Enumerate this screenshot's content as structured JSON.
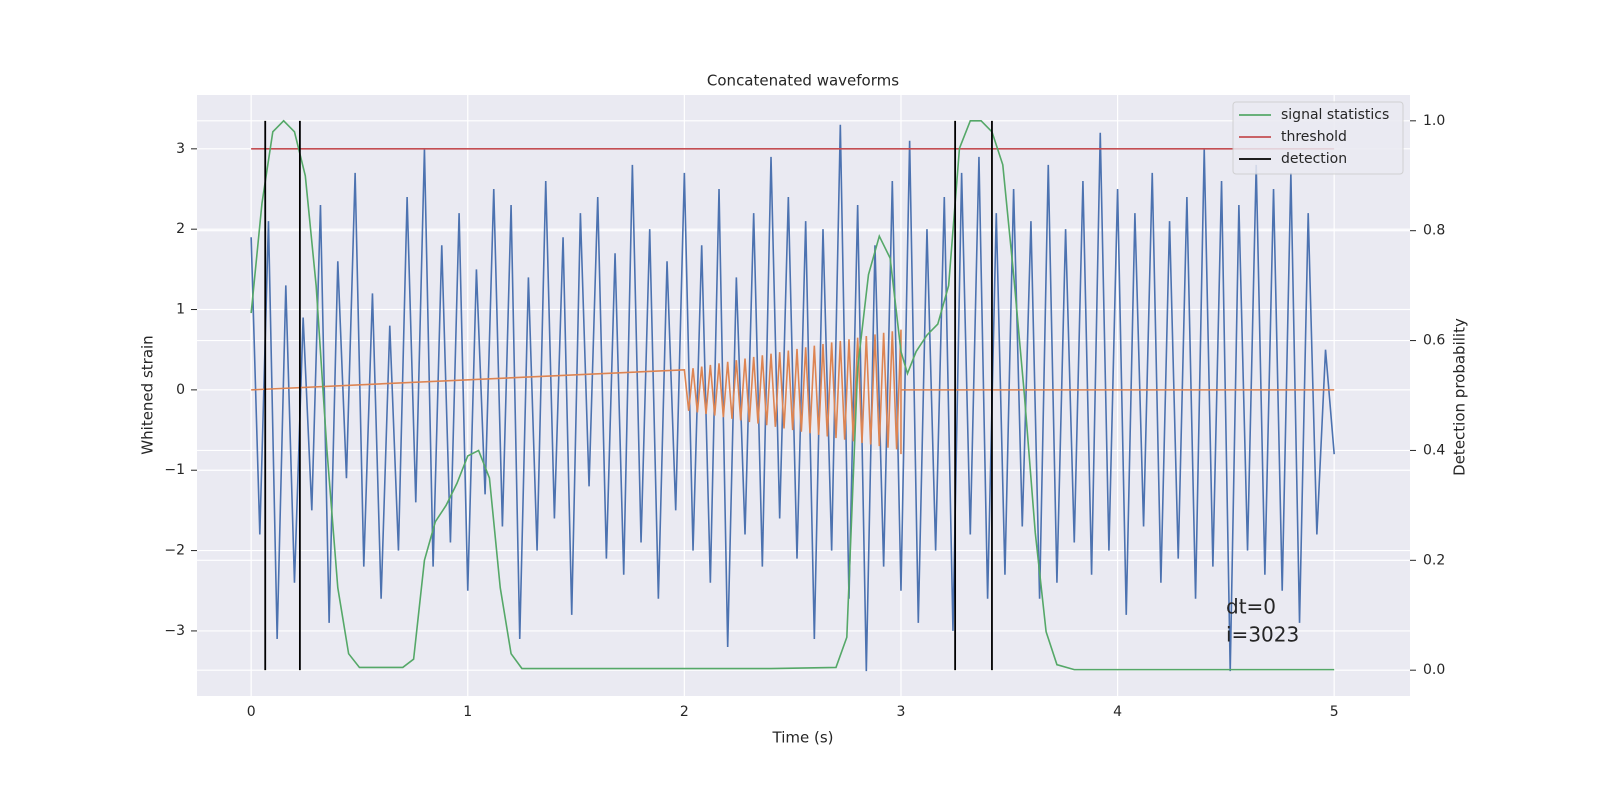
{
  "chart_data": {
    "type": "line",
    "title": "Concatenated waveforms",
    "x_label": "Time (s)",
    "y_label": "Whitened strain",
    "y2_label": "Detection probability",
    "xlim": [
      -0.25,
      5.35
    ],
    "ylim": [
      -3.81,
      3.67
    ],
    "y2lim": [
      -0.047,
      1.047
    ],
    "xticks": [
      0,
      1,
      2,
      3,
      4,
      5
    ],
    "yticks": [
      {
        "value": -3,
        "label": "−3"
      },
      {
        "value": -2,
        "label": "−2"
      },
      {
        "value": -1,
        "label": "−1"
      },
      0,
      1,
      2,
      3
    ],
    "y2ticks": [
      {
        "value": 0,
        "label": "0.0"
      },
      0.2,
      0.4,
      0.6,
      0.8,
      {
        "value": 1,
        "label": "1.0"
      }
    ],
    "grid": true,
    "legend": "upper right",
    "annotations": [
      "dt=0",
      "i=3023"
    ],
    "series": [
      {
        "type": "line",
        "color": "#4c72b0",
        "axis": "y",
        "x": [
          0,
          0.04,
          0.08,
          0.12,
          0.16,
          0.2,
          0.24,
          0.28,
          0.32,
          0.36,
          0.4,
          0.44,
          0.48,
          0.52,
          0.56,
          0.6,
          0.64,
          0.68,
          0.72,
          0.76,
          0.8,
          0.84,
          0.88,
          0.92,
          0.96,
          1.0,
          1.04,
          1.08,
          1.12,
          1.16,
          1.2,
          1.24,
          1.28,
          1.32,
          1.36,
          1.4,
          1.44,
          1.48,
          1.52,
          1.56,
          1.6,
          1.64,
          1.68,
          1.72,
          1.76,
          1.8,
          1.84,
          1.88,
          1.92,
          1.96,
          2.0,
          2.04,
          2.08,
          2.12,
          2.16,
          2.2,
          2.24,
          2.28,
          2.32,
          2.36,
          2.4,
          2.44,
          2.48,
          2.52,
          2.56,
          2.6,
          2.64,
          2.68,
          2.72,
          2.76,
          2.8,
          2.84,
          2.88,
          2.92,
          2.96,
          3.0,
          3.04,
          3.08,
          3.12,
          3.16,
          3.2,
          3.24,
          3.28,
          3.32,
          3.36,
          3.4,
          3.44,
          3.48,
          3.52,
          3.56,
          3.6,
          3.64,
          3.68,
          3.72,
          3.76,
          3.8,
          3.84,
          3.88,
          3.92,
          3.96,
          4.0,
          4.04,
          4.08,
          4.12,
          4.16,
          4.2,
          4.24,
          4.28,
          4.32,
          4.36,
          4.4,
          4.44,
          4.48,
          4.52,
          4.56,
          4.6,
          4.64,
          4.68,
          4.72,
          4.76,
          4.8,
          4.84,
          4.88,
          4.92,
          4.96,
          5.0
        ],
        "values": [
          1.9,
          -1.8,
          2.1,
          -3.1,
          1.3,
          -2.4,
          0.9,
          -1.5,
          2.3,
          -2.9,
          1.6,
          -1.1,
          2.7,
          -2.2,
          1.2,
          -2.6,
          0.8,
          -2.0,
          2.4,
          -1.4,
          3.0,
          -2.2,
          1.8,
          -1.9,
          2.2,
          -2.5,
          1.5,
          -1.3,
          2.5,
          -1.7,
          2.3,
          -3.1,
          1.4,
          -2.0,
          2.6,
          -1.6,
          1.9,
          -2.8,
          2.2,
          -1.2,
          2.4,
          -2.1,
          1.7,
          -2.3,
          2.8,
          -1.9,
          2.0,
          -2.6,
          1.6,
          -1.5,
          2.7,
          -2.0,
          1.8,
          -2.4,
          2.5,
          -3.2,
          1.4,
          -1.8,
          2.2,
          -2.2,
          2.9,
          -1.6,
          2.4,
          -2.1,
          2.1,
          -3.1,
          2.0,
          -2.0,
          3.3,
          -2.6,
          2.3,
          -3.5,
          1.8,
          -2.2,
          2.6,
          -2.5,
          3.1,
          -2.9,
          2.0,
          -2.0,
          2.4,
          -3.0,
          2.7,
          -1.8,
          2.9,
          -2.6,
          2.2,
          -2.3,
          2.5,
          -1.7,
          2.1,
          -2.6,
          2.8,
          -2.4,
          2.0,
          -1.9,
          2.6,
          -2.3,
          3.2,
          -2.0,
          2.5,
          -2.8,
          2.2,
          -1.7,
          2.7,
          -2.4,
          2.1,
          -2.1,
          2.4,
          -2.6,
          3.0,
          -2.2,
          2.6,
          -3.5,
          2.3,
          -2.0,
          2.8,
          -2.3,
          2.5,
          -2.5,
          2.7,
          -2.9,
          2.2,
          -1.8,
          0.5,
          -0.8
        ]
      },
      {
        "type": "line",
        "color": "#dd8452",
        "axis": "y",
        "x": [
          0,
          2.0,
          2.02,
          2.04,
          2.06,
          2.08,
          2.1,
          2.12,
          2.14,
          2.16,
          2.18,
          2.2,
          2.22,
          2.24,
          2.26,
          2.28,
          2.3,
          2.32,
          2.34,
          2.36,
          2.38,
          2.4,
          2.42,
          2.44,
          2.46,
          2.48,
          2.5,
          2.52,
          2.54,
          2.56,
          2.58,
          2.6,
          2.62,
          2.64,
          2.66,
          2.68,
          2.7,
          2.72,
          2.74,
          2.76,
          2.78,
          2.8,
          2.82,
          2.84,
          2.86,
          2.88,
          2.9,
          2.92,
          2.94,
          2.96,
          2.98,
          3.0,
          3.0,
          3.0,
          5
        ],
        "values": [
          0,
          0.25,
          -0.26,
          0.27,
          -0.28,
          0.29,
          -0.3,
          0.31,
          -0.32,
          0.33,
          -0.34,
          0.35,
          -0.36,
          0.37,
          -0.38,
          0.39,
          -0.4,
          0.41,
          -0.42,
          0.43,
          -0.44,
          0.45,
          -0.46,
          0.47,
          -0.48,
          0.49,
          -0.5,
          0.51,
          -0.52,
          0.53,
          -0.54,
          0.55,
          -0.56,
          0.57,
          -0.58,
          0.59,
          -0.6,
          0.61,
          -0.62,
          0.63,
          -0.64,
          0.65,
          -0.66,
          0.67,
          -0.68,
          0.69,
          -0.7,
          0.71,
          -0.72,
          0.73,
          -0.74,
          0.75,
          -0.8,
          0,
          0
        ]
      },
      {
        "type": "line",
        "name": "threshold",
        "color": "#c44e52",
        "axis": "y",
        "x": [
          0,
          5
        ],
        "values": [
          3,
          3
        ]
      },
      {
        "type": "line",
        "name": "signal statistics",
        "color": "#55a868",
        "axis": "y2",
        "x": [
          0,
          0.05,
          0.1,
          0.15,
          0.2,
          0.25,
          0.3,
          0.35,
          0.4,
          0.45,
          0.5,
          0.7,
          0.75,
          0.8,
          0.85,
          0.9,
          0.95,
          1.0,
          1.05,
          1.1,
          1.15,
          1.2,
          1.25,
          2.4,
          2.7,
          2.75,
          2.8,
          2.85,
          2.9,
          2.95,
          3.0,
          3.03,
          3.07,
          3.12,
          3.17,
          3.22,
          3.27,
          3.32,
          3.37,
          3.42,
          3.47,
          3.52,
          3.57,
          3.62,
          3.67,
          3.72,
          3.8,
          5
        ],
        "values": [
          0.65,
          0.85,
          0.98,
          1.0,
          0.98,
          0.9,
          0.7,
          0.4,
          0.15,
          0.03,
          0.005,
          0.005,
          0.02,
          0.2,
          0.27,
          0.3,
          0.34,
          0.39,
          0.4,
          0.35,
          0.15,
          0.03,
          0.003,
          0.003,
          0.005,
          0.06,
          0.55,
          0.72,
          0.79,
          0.75,
          0.58,
          0.54,
          0.58,
          0.61,
          0.63,
          0.7,
          0.95,
          1.0,
          1.0,
          0.98,
          0.92,
          0.72,
          0.5,
          0.25,
          0.07,
          0.01,
          0.001,
          0.001
        ]
      },
      {
        "type": "vlines",
        "name": "detection",
        "color": "#000000",
        "axis": "y2",
        "x": [
          0.065,
          0.225,
          3.25,
          3.42
        ],
        "ymin": 0,
        "ymax": 1
      }
    ]
  }
}
